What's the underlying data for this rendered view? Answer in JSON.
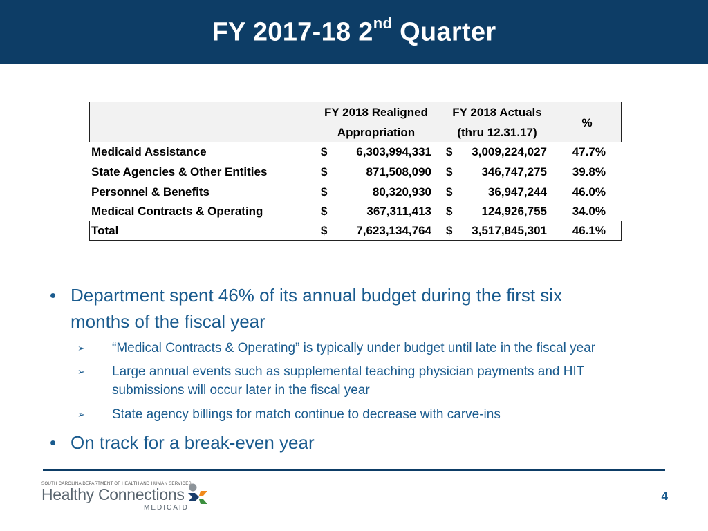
{
  "slide": {
    "title_main": "FY 2017-18 2",
    "title_sup": "nd",
    "title_end": " Quarter",
    "page_number": "4"
  },
  "table": {
    "headers": {
      "col1_line1": "FY 2018 Realigned",
      "col1_line2": "Appropriation",
      "col2_line1": "FY 2018 Actuals",
      "col2_line2": "(thru 12.31.17)",
      "col3": "%"
    },
    "currency_symbol": "$",
    "rows": [
      {
        "label": "Medicaid Assistance",
        "appropriation": "6,303,994,331",
        "actuals": "3,009,224,027",
        "pct": "47.7%"
      },
      {
        "label": "State Agencies & Other Entities",
        "appropriation": "871,508,090",
        "actuals": "346,747,275",
        "pct": "39.8%"
      },
      {
        "label": "Personnel & Benefits",
        "appropriation": "80,320,930",
        "actuals": "36,947,244",
        "pct": "46.0%"
      },
      {
        "label": "Medical Contracts & Operating",
        "appropriation": "367,311,413",
        "actuals": "124,926,755",
        "pct": "34.0%"
      },
      {
        "label": "Total",
        "appropriation": "7,623,134,764",
        "actuals": "3,517,845,301",
        "pct": "46.1%"
      }
    ]
  },
  "bullets": {
    "main1_line1": "Department spent 46% of its annual budget during the first six",
    "main1_line2": "months of the fiscal year",
    "sub1": "“Medical Contracts & Operating” is typically under budget until late in the fiscal year",
    "sub2_line1": "Large annual events such as supplemental teaching physician payments and HIT",
    "sub2_line2": "submissions will occur later in the fiscal year",
    "sub3": "State agency billings for match continue to decrease with carve-ins",
    "main2": "On track for a break-even year",
    "bullet_glyph": "•",
    "sub_glyph": "➢"
  },
  "logo": {
    "small_text": "SOUTH CAROLINA DEPARTMENT OF HEALTH AND HUMAN SERVICES",
    "main_text": "Healthy Connections",
    "sub_text": "MEDICAID",
    "colors": {
      "orange": "#f08a1c",
      "green": "#3b8f3e",
      "navy": "#1a3d6b",
      "grey": "#8c9399"
    }
  },
  "colors": {
    "title_bar": "#0d3d66",
    "bullet_text": "#1a5b8e",
    "header_fill": "#f2f2f2"
  }
}
